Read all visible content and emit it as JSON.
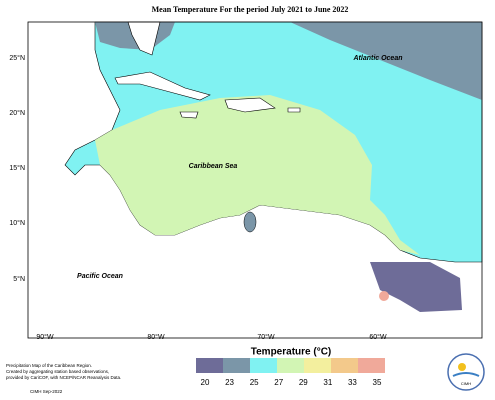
{
  "title": "Mean Temperature For the period July 2021 to June 2022",
  "map": {
    "labels": [
      "Atlantic Ocean",
      "Caribbean Sea",
      "Pacific Ocean"
    ],
    "lat_ticks": [
      "25°N",
      "20°N",
      "15°N",
      "10°N",
      "5°N"
    ],
    "lon_ticks": [
      "90°W",
      "80°W",
      "70°W",
      "60°W"
    ]
  },
  "legend": {
    "title": "Temperature (°C)",
    "colors": [
      "#6e6c98",
      "#7b96a8",
      "#80f2f2",
      "#d2f5b4",
      "#f3ef9e",
      "#f3c98b",
      "#f0a99a"
    ],
    "ticks": [
      "20",
      "23",
      "25",
      "27",
      "29",
      "31",
      "33",
      "35"
    ]
  },
  "footnote": [
    "Precipitation Map of the Caribbean Region.",
    "Created by aggregating station based observations,",
    "provided by CariCOF, with NCEP/NCAR Reanalysis Data."
  ],
  "credit": "CIMH Sep-2022",
  "logo": "CIMH"
}
